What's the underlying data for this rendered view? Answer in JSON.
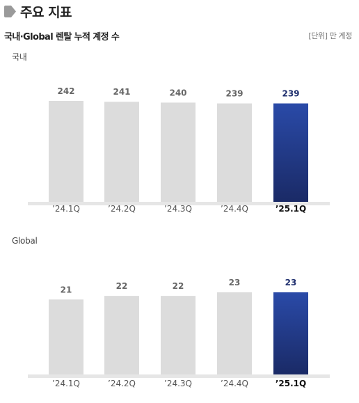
{
  "header": {
    "title": "주요 지표",
    "subtitle": "국내·Global 렌탈 누적 계정 수",
    "unit": "[단위] 만 계정"
  },
  "colors": {
    "bar_gray": "#dcdcdc",
    "bar_highlight_top": "#2a4aa8",
    "bar_highlight_bottom": "#1a2a66",
    "highlight_text": "#1f2f6e",
    "label_gray": "#666666",
    "baseline": "#e6e6e6"
  },
  "chart_data": [
    {
      "type": "bar",
      "title": "국내",
      "categories": [
        "’24.1Q",
        "’24.2Q",
        "’24.3Q",
        "’24.4Q",
        "’25.1Q"
      ],
      "values": [
        242,
        241,
        240,
        239,
        239
      ],
      "highlight_index": 4
    },
    {
      "type": "bar",
      "title": "Global",
      "categories": [
        "’24.1Q",
        "’24.2Q",
        "’24.3Q",
        "’24.4Q",
        "’25.1Q"
      ],
      "values": [
        21,
        22,
        22,
        23,
        23
      ],
      "highlight_index": 4
    }
  ]
}
